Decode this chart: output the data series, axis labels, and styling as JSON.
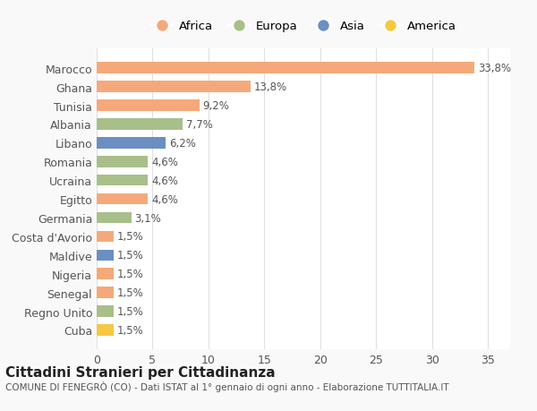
{
  "categories": [
    "Cuba",
    "Regno Unito",
    "Senegal",
    "Nigeria",
    "Maldive",
    "Costa d'Avorio",
    "Germania",
    "Egitto",
    "Ucraina",
    "Romania",
    "Libano",
    "Albania",
    "Tunisia",
    "Ghana",
    "Marocco"
  ],
  "values": [
    1.5,
    1.5,
    1.5,
    1.5,
    1.5,
    1.5,
    3.1,
    4.6,
    4.6,
    4.6,
    6.2,
    7.7,
    9.2,
    13.8,
    33.8
  ],
  "colors": [
    "#f5c842",
    "#a8bf8a",
    "#f5a97a",
    "#f5a97a",
    "#6b8fc2",
    "#f5a97a",
    "#a8bf8a",
    "#f5a97a",
    "#a8bf8a",
    "#a8bf8a",
    "#6b8fc2",
    "#a8bf8a",
    "#f5a97a",
    "#f5a97a",
    "#f5a97a"
  ],
  "labels": [
    "1,5%",
    "1,5%",
    "1,5%",
    "1,5%",
    "1,5%",
    "1,5%",
    "3,1%",
    "4,6%",
    "4,6%",
    "4,6%",
    "6,2%",
    "7,7%",
    "9,2%",
    "13,8%",
    "33,8%"
  ],
  "legend": [
    {
      "label": "Africa",
      "color": "#f5a97a"
    },
    {
      "label": "Europa",
      "color": "#a8bf8a"
    },
    {
      "label": "Asia",
      "color": "#6b8fc2"
    },
    {
      "label": "America",
      "color": "#f5c842"
    }
  ],
  "title": "Cittadini Stranieri per Cittadinanza",
  "subtitle": "COMUNE DI FENEGRÒ (CO) - Dati ISTAT al 1° gennaio di ogni anno - Elaborazione TUTTITALIA.IT",
  "xlim": [
    0,
    37
  ],
  "xticks": [
    0,
    5,
    10,
    15,
    20,
    25,
    30,
    35
  ],
  "background_color": "#f9f9f9",
  "bar_background": "#ffffff",
  "grid_color": "#e0e0e0",
  "label_color": "#555555",
  "title_color": "#222222"
}
